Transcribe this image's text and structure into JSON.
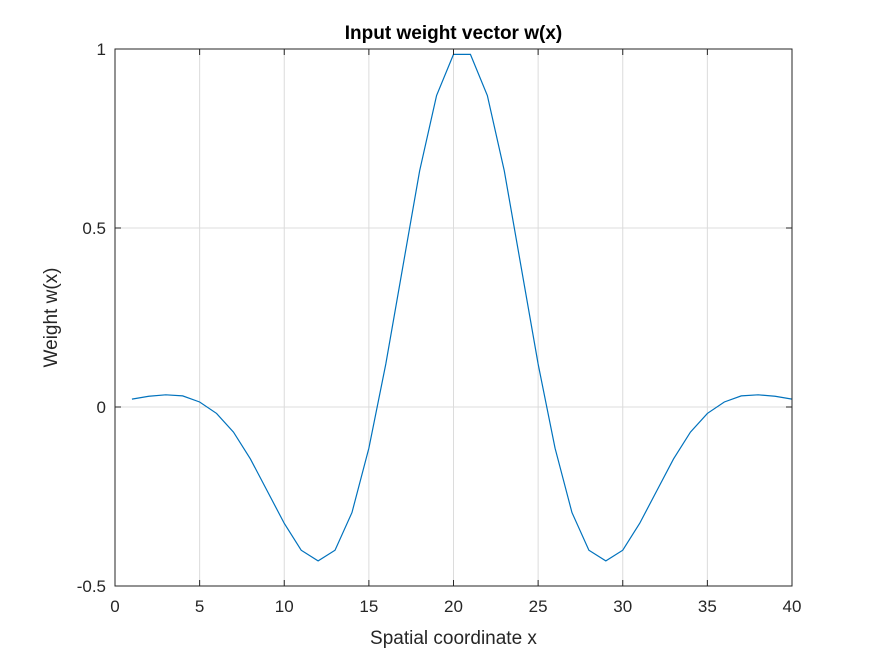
{
  "chart_data": {
    "type": "line",
    "title": "Input weight vector w(x)",
    "xlabel": "Spatial coordinate x",
    "ylabel": "Weight w(x)",
    "xlim": [
      0,
      40
    ],
    "ylim": [
      -0.5,
      1
    ],
    "xticks": [
      0,
      5,
      10,
      15,
      20,
      25,
      30,
      35,
      40
    ],
    "yticks": [
      -0.5,
      0,
      0.5,
      1
    ],
    "xtick_labels": [
      "0",
      "5",
      "10",
      "15",
      "20",
      "25",
      "30",
      "35",
      "40"
    ],
    "ytick_labels": [
      "-0.5",
      "0",
      "0.5",
      "1"
    ],
    "grid": true,
    "colors": {
      "series": "#0072bd",
      "grid": "#dcdcdc",
      "axes": "#262626"
    },
    "series": [
      {
        "x": [
          1,
          2,
          3,
          4,
          5,
          6,
          7,
          8,
          9,
          10,
          11,
          12,
          13,
          14,
          15,
          16,
          17,
          18,
          19,
          20,
          21,
          22,
          23,
          24,
          25,
          26,
          27,
          28,
          29,
          30,
          31,
          32,
          33,
          34,
          35,
          36,
          37,
          38,
          39,
          40
        ],
        "values": [
          0.022,
          0.03,
          0.034,
          0.031,
          0.014,
          -0.018,
          -0.07,
          -0.145,
          -0.235,
          -0.325,
          -0.4,
          -0.43,
          -0.4,
          -0.295,
          -0.115,
          0.12,
          0.39,
          0.66,
          0.87,
          0.985,
          0.985,
          0.87,
          0.66,
          0.39,
          0.12,
          -0.115,
          -0.295,
          -0.4,
          -0.43,
          -0.4,
          -0.325,
          -0.235,
          -0.145,
          -0.07,
          -0.018,
          0.014,
          0.031,
          0.034,
          0.03,
          0.022
        ]
      }
    ]
  }
}
